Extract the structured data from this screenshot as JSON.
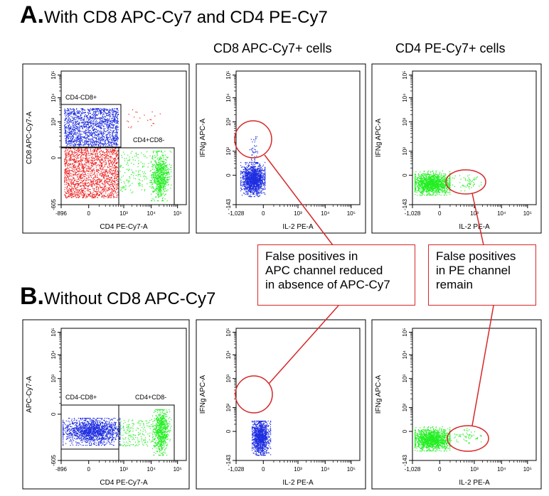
{
  "sections": [
    {
      "letter": "A.",
      "title": "With CD8 APC-Cy7 and CD4 PE-Cy7"
    },
    {
      "letter": "B.",
      "title": "Without CD8 APC-Cy7"
    }
  ],
  "column_headers": [
    "CD8 APC-Cy7+ cells",
    "CD4 PE-Cy7+ cells"
  ],
  "callouts": [
    {
      "lines": [
        "False positives in",
        "APC channel reduced",
        "in absence of APC-Cy7"
      ]
    },
    {
      "lines": [
        "False positives",
        "in PE channel",
        "remain"
      ]
    }
  ],
  "colors": {
    "cd8_pos": "#1f2ee0",
    "double_neg": "#ee1f1f",
    "cd4_pos": "#22ee22",
    "annotation": "#d62728"
  },
  "plots": [
    {
      "id": "A1",
      "xlabel": "CD4 PE-Cy7-A",
      "ylabel": "CD8 APC-Cy7-A",
      "xticks": [
        "-896",
        "0",
        "10³",
        "10⁴",
        "10⁵"
      ],
      "yticks": [
        "-605",
        "0",
        "10³",
        "10⁴",
        "10⁵"
      ],
      "gates": [
        "CD4-CD8+",
        "CD4+CD8-"
      ]
    },
    {
      "id": "A2",
      "xlabel": "IL-2 PE-A",
      "ylabel": "IFNg APC-A",
      "xticks": [
        "-1,028",
        "0",
        "10³",
        "10⁴",
        "10⁵"
      ],
      "yticks": [
        "-143",
        "0",
        "10²",
        "10³",
        "10⁴",
        "10⁵"
      ]
    },
    {
      "id": "A3",
      "xlabel": "IL-2 PE-A",
      "ylabel": "IFNg APC-A",
      "xticks": [
        "-1,028",
        "0",
        "10³",
        "10⁴",
        "10⁵"
      ],
      "yticks": [
        "-143",
        "0",
        "10²",
        "10³",
        "10⁴",
        "10⁵"
      ]
    },
    {
      "id": "B1",
      "xlabel": "CD4 PE-Cy7-A",
      "ylabel": "APC-Cy7-A",
      "xticks": [
        "-896",
        "0",
        "10³",
        "10⁴",
        "10⁵"
      ],
      "yticks": [
        "-605",
        "0",
        "10³",
        "10⁴",
        "10⁵"
      ],
      "gates": [
        "CD4-CD8+",
        "CD4+CD8-"
      ]
    },
    {
      "id": "B2",
      "xlabel": "IL-2 PE-A",
      "ylabel": "IFNg APC-A",
      "xticks": [
        "-1,028",
        "0",
        "10³",
        "10⁴",
        "10⁵"
      ],
      "yticks": [
        "-143",
        "0",
        "10²",
        "10³",
        "10⁴",
        "10⁵"
      ]
    },
    {
      "id": "B3",
      "xlabel": "IL-2 PE-A",
      "ylabel": "IFNg APC-A",
      "xticks": [
        "-1,028",
        "0",
        "10³",
        "10⁴",
        "10⁵"
      ],
      "yticks": [
        "-143",
        "0",
        "10²",
        "10³",
        "10⁴",
        "10⁵"
      ]
    }
  ]
}
